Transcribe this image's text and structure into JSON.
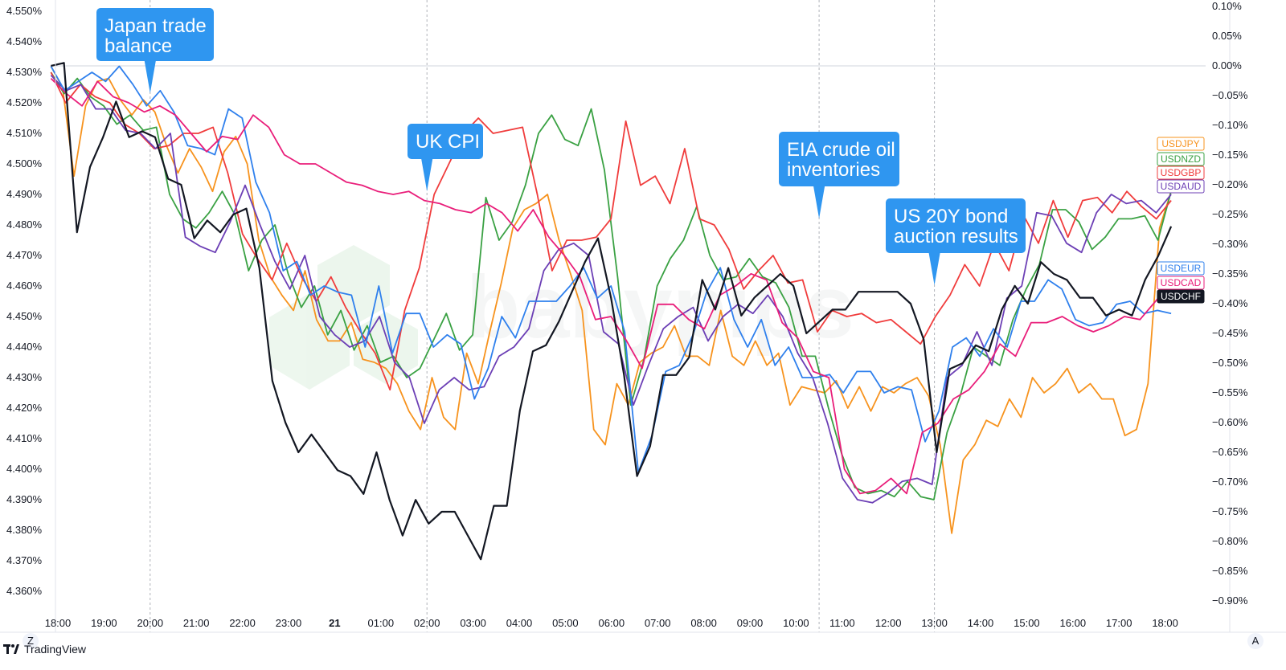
{
  "brand": {
    "name": "TradingView",
    "watermark": "babypips"
  },
  "axis_buttons": {
    "left": "Z",
    "right": "A"
  },
  "chart_data": {
    "type": "line",
    "left_axis": {
      "unit": "yield %",
      "ticks": [
        "4.550%",
        "4.540%",
        "4.530%",
        "4.520%",
        "4.510%",
        "4.500%",
        "4.490%",
        "4.480%",
        "4.470%",
        "4.460%",
        "4.450%",
        "4.440%",
        "4.430%",
        "4.420%",
        "4.410%",
        "4.400%",
        "4.390%",
        "4.380%",
        "4.370%",
        "4.360%"
      ],
      "range": [
        4.355,
        4.555
      ]
    },
    "right_axis": {
      "unit": "% change",
      "ticks": [
        "0.10%",
        "0.05%",
        "0.00%",
        "−0.05%",
        "−0.10%",
        "−0.15%",
        "−0.20%",
        "−0.25%",
        "−0.30%",
        "−0.35%",
        "−0.40%",
        "−0.45%",
        "−0.50%",
        "−0.55%",
        "−0.60%",
        "−0.65%",
        "−0.70%",
        "−0.75%",
        "−0.80%",
        "−0.85%",
        "−0.90%"
      ],
      "range": [
        -0.92,
        0.11
      ]
    },
    "x_axis": {
      "ticks": [
        "18:00",
        "19:00",
        "20:00",
        "21:00",
        "22:00",
        "23:00",
        "21",
        "01:00",
        "02:00",
        "03:00",
        "04:00",
        "05:00",
        "06:00",
        "07:00",
        "08:00",
        "09:00",
        "10:00",
        "11:00",
        "12:00",
        "13:00",
        "14:00",
        "15:00",
        "16:00",
        "17:00",
        "18:00"
      ],
      "bold_tick": "21",
      "start_hour": 17.8,
      "end_hour": 42.2
    },
    "grid": false,
    "zero_line": 0.0,
    "events": [
      {
        "hour": 20.0,
        "label": [
          "Japan trade",
          "balance"
        ]
      },
      {
        "hour": 26.0,
        "label": [
          "UK CPI"
        ]
      },
      {
        "hour": 34.5,
        "label": [
          "EIA crude oil",
          "inventories"
        ]
      },
      {
        "hour": 37.0,
        "label": [
          "US 20Y bond",
          "auction results"
        ]
      }
    ],
    "series": [
      {
        "name": "USDJPY",
        "color": "#f7931e",
        "axis": "left",
        "values": [
          4.532,
          4.525,
          4.496,
          4.519,
          4.527,
          4.528,
          4.521,
          4.516,
          4.521,
          4.517,
          4.506,
          4.497,
          4.505,
          4.499,
          4.491,
          4.504,
          4.509,
          4.5,
          4.475,
          4.463,
          4.457,
          4.452,
          4.465,
          4.449,
          4.442,
          4.442,
          4.448,
          4.436,
          4.435,
          4.433,
          4.428,
          4.419,
          4.413,
          4.43,
          4.417,
          4.413,
          4.438,
          4.428,
          4.445,
          4.461,
          4.479,
          4.485,
          4.487,
          4.49,
          4.475,
          4.464,
          4.452,
          4.413,
          4.408,
          4.428,
          4.421,
          4.435,
          4.438,
          4.44,
          4.447,
          4.437,
          4.437,
          4.434,
          4.452,
          4.437,
          4.434,
          4.442,
          4.434,
          4.438,
          4.421,
          4.427,
          4.426,
          4.425,
          4.429,
          4.42,
          4.427,
          4.419,
          4.427,
          4.425,
          4.428,
          4.43,
          4.424,
          4.408,
          4.379,
          4.403,
          4.408,
          4.416,
          4.414,
          4.423,
          4.417,
          4.43,
          4.425,
          4.428,
          4.433,
          4.425,
          4.428,
          4.423,
          4.423,
          4.411,
          4.413,
          4.428,
          4.479,
          4.491
        ]
      },
      {
        "name": "USDNZD",
        "color": "#3aa143",
        "axis": "left",
        "values": [
          4.53,
          4.523,
          4.528,
          4.522,
          4.519,
          4.513,
          4.516,
          4.511,
          4.512,
          4.49,
          4.482,
          4.479,
          4.484,
          4.491,
          4.483,
          4.465,
          4.475,
          4.48,
          4.464,
          4.453,
          4.46,
          4.444,
          4.452,
          4.439,
          4.447,
          4.435,
          4.437,
          4.43,
          4.433,
          4.442,
          4.451,
          4.439,
          4.444,
          4.489,
          4.475,
          4.481,
          4.493,
          4.51,
          4.516,
          4.508,
          4.506,
          4.518,
          4.498,
          4.463,
          4.421,
          4.436,
          4.46,
          4.469,
          4.475,
          4.486,
          4.47,
          4.462,
          4.463,
          4.469,
          4.463,
          4.461,
          4.453,
          4.437,
          4.437,
          4.42,
          4.405,
          4.394,
          4.392,
          4.393,
          4.391,
          4.396,
          4.391,
          4.39,
          4.412,
          4.424,
          4.44,
          4.437,
          4.434,
          4.449,
          4.459,
          4.467,
          4.485,
          4.485,
          4.481,
          4.472,
          4.476,
          4.482,
          4.482,
          4.483,
          4.475,
          4.491
        ]
      },
      {
        "name": "USDGBP",
        "color": "#f03c3c",
        "axis": "left",
        "values": [
          4.53,
          4.52,
          4.526,
          4.522,
          4.52,
          4.513,
          4.51,
          4.505,
          4.506,
          4.51,
          4.51,
          4.512,
          4.497,
          4.477,
          4.469,
          4.462,
          4.474,
          4.463,
          4.455,
          4.463,
          4.453,
          4.445,
          4.438,
          4.426,
          4.452,
          4.466,
          4.49,
          4.5,
          4.51,
          4.515,
          4.51,
          4.511,
          4.512,
          4.49,
          4.465,
          4.475,
          4.475,
          4.476,
          4.482,
          4.514,
          4.493,
          4.496,
          4.487,
          4.505,
          4.482,
          4.48,
          4.472,
          4.459,
          4.465,
          4.47,
          4.461,
          4.462,
          4.445,
          4.452,
          4.45,
          4.451,
          4.448,
          4.449,
          4.445,
          4.441,
          4.45,
          4.457,
          4.467,
          4.46,
          4.474,
          4.465,
          4.483,
          4.474,
          4.488,
          4.476,
          4.488,
          4.489,
          4.484,
          4.491,
          4.486,
          4.482,
          4.488
        ]
      },
      {
        "name": "USDAUD",
        "color": "#6c3fb5",
        "axis": "left",
        "values": [
          4.529,
          4.524,
          4.526,
          4.518,
          4.518,
          4.511,
          4.51,
          4.505,
          4.51,
          4.476,
          4.473,
          4.471,
          4.481,
          4.493,
          4.48,
          4.468,
          4.459,
          4.47,
          4.45,
          4.444,
          4.44,
          4.442,
          4.45,
          4.435,
          4.43,
          4.415,
          4.426,
          4.43,
          4.426,
          4.427,
          4.437,
          4.44,
          4.446,
          4.465,
          4.472,
          4.474,
          4.47,
          4.445,
          4.441,
          4.421,
          4.434,
          4.446,
          4.45,
          4.453,
          4.442,
          4.45,
          4.454,
          4.451,
          4.457,
          4.45,
          4.438,
          4.43,
          4.415,
          4.397,
          4.39,
          4.389,
          4.392,
          4.396,
          4.397,
          4.395,
          4.43,
          4.434,
          4.445,
          4.434,
          4.456,
          4.46,
          4.484,
          4.483,
          4.474,
          4.471,
          4.484,
          4.49,
          4.487,
          4.488,
          4.484,
          4.49
        ]
      },
      {
        "name": "USDEUR",
        "color": "#2f80ed",
        "axis": "left",
        "values": [
          4.532,
          4.524,
          4.527,
          4.53,
          4.527,
          4.532,
          4.526,
          4.519,
          4.524,
          4.517,
          4.506,
          4.505,
          4.503,
          4.518,
          4.515,
          4.494,
          4.484,
          4.465,
          4.468,
          4.457,
          4.46,
          4.458,
          4.457,
          4.44,
          4.46,
          4.438,
          4.451,
          4.451,
          4.44,
          4.444,
          4.441,
          4.423,
          4.433,
          4.45,
          4.443,
          4.455,
          4.455,
          4.455,
          4.46,
          4.466,
          4.456,
          4.46,
          4.445,
          4.399,
          4.411,
          4.432,
          4.434,
          4.444,
          4.458,
          4.466,
          4.449,
          4.44,
          4.449,
          4.434,
          4.44,
          4.43,
          4.43,
          4.431,
          4.425,
          4.432,
          4.432,
          4.425,
          4.427,
          4.426,
          4.409,
          4.419,
          4.44,
          4.443,
          4.437,
          4.446,
          4.44,
          4.455,
          4.455,
          4.462,
          4.459,
          4.449,
          4.447,
          4.448,
          4.454,
          4.455,
          4.451,
          4.452,
          4.451
        ]
      },
      {
        "name": "USDCAD",
        "color": "#e91e7a",
        "axis": "left",
        "values": [
          4.528,
          4.523,
          4.519,
          4.527,
          4.522,
          4.52,
          4.517,
          4.519,
          4.516,
          4.51,
          4.504,
          4.509,
          4.508,
          4.516,
          4.512,
          4.503,
          4.5,
          4.5,
          4.497,
          4.494,
          4.493,
          4.491,
          4.49,
          4.491,
          4.488,
          4.487,
          4.485,
          4.484,
          4.487,
          4.484,
          4.478,
          4.485,
          4.476,
          4.47,
          4.463,
          4.449,
          4.45,
          4.442,
          4.433,
          4.454,
          4.454,
          4.449,
          4.446,
          4.457,
          4.46,
          4.464,
          4.462,
          4.448,
          4.443,
          4.432,
          4.43,
          4.4,
          4.392,
          4.393,
          4.397,
          4.392,
          4.412,
          4.415,
          4.423,
          4.426,
          4.432,
          4.441,
          4.437,
          4.448,
          4.448,
          4.45,
          4.447,
          4.445,
          4.447,
          4.45,
          4.449,
          4.455,
          4.461
        ]
      },
      {
        "name": "USDCHF",
        "color": "#131722",
        "axis": "right",
        "values": [
          0.0,
          0.005,
          -0.28,
          -0.17,
          -0.12,
          -0.06,
          -0.12,
          -0.11,
          -0.12,
          -0.19,
          -0.2,
          -0.29,
          -0.26,
          -0.28,
          -0.25,
          -0.24,
          -0.34,
          -0.53,
          -0.6,
          -0.65,
          -0.62,
          -0.65,
          -0.68,
          -0.69,
          -0.72,
          -0.65,
          -0.73,
          -0.79,
          -0.73,
          -0.77,
          -0.75,
          -0.75,
          -0.79,
          -0.83,
          -0.74,
          -0.74,
          -0.58,
          -0.48,
          -0.47,
          -0.43,
          -0.38,
          -0.33,
          -0.29,
          -0.39,
          -0.52,
          -0.69,
          -0.64,
          -0.52,
          -0.52,
          -0.49,
          -0.36,
          -0.41,
          -0.34,
          -0.42,
          -0.39,
          -0.37,
          -0.35,
          -0.37,
          -0.45,
          -0.43,
          -0.41,
          -0.41,
          -0.38,
          -0.38,
          -0.38,
          -0.38,
          -0.4,
          -0.46,
          -0.65,
          -0.51,
          -0.5,
          -0.47,
          -0.48,
          -0.41,
          -0.37,
          -0.4,
          -0.33,
          -0.35,
          -0.36,
          -0.39,
          -0.39,
          -0.42,
          -0.41,
          -0.42,
          -0.36,
          -0.32,
          -0.27
        ]
      }
    ]
  }
}
